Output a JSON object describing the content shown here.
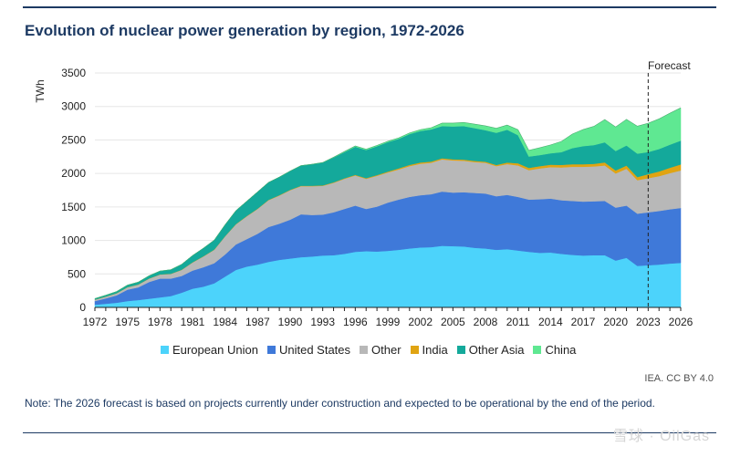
{
  "header": {
    "title": "Evolution of nuclear power generation by region, 1972-2026"
  },
  "footer": {
    "credit": "IEA. CC BY 4.0",
    "note": "Note: The 2026 forecast is based on projects currently under construction and expected to be operational by the end of the period.",
    "watermark": "雪球 · OilGas"
  },
  "chart_data": {
    "type": "area",
    "stacked": true,
    "title": "Evolution of nuclear power generation by region, 1972-2026",
    "xlabel": "",
    "ylabel": "TWh",
    "xlim": [
      1972,
      2026
    ],
    "ylim": [
      0,
      3500
    ],
    "x_ticks": [
      1972,
      1975,
      1978,
      1981,
      1984,
      1987,
      1990,
      1993,
      1996,
      1999,
      2002,
      2005,
      2008,
      2011,
      2014,
      2017,
      2020,
      2023,
      2026
    ],
    "y_ticks": [
      0,
      500,
      1000,
      1500,
      2000,
      2500,
      3000,
      3500
    ],
    "grid": "horizontal",
    "legend_position": "bottom",
    "annotation": {
      "label": "Forecast",
      "x": 2023
    },
    "x": [
      1972,
      1973,
      1974,
      1975,
      1976,
      1977,
      1978,
      1979,
      1980,
      1981,
      1982,
      1983,
      1984,
      1985,
      1986,
      1987,
      1988,
      1989,
      1990,
      1991,
      1992,
      1993,
      1994,
      1995,
      1996,
      1997,
      1998,
      1999,
      2000,
      2001,
      2002,
      2003,
      2004,
      2005,
      2006,
      2007,
      2008,
      2009,
      2010,
      2011,
      2012,
      2013,
      2014,
      2015,
      2016,
      2017,
      2018,
      2019,
      2020,
      2021,
      2022,
      2023,
      2024,
      2025,
      2026
    ],
    "series": [
      {
        "name": "European Union",
        "color": "#4cd3fb",
        "values": [
          40,
          55,
          70,
          95,
          110,
          130,
          150,
          170,
          220,
          280,
          310,
          360,
          460,
          560,
          610,
          640,
          680,
          710,
          730,
          750,
          760,
          775,
          780,
          800,
          830,
          840,
          835,
          845,
          860,
          880,
          895,
          900,
          920,
          915,
          910,
          890,
          880,
          860,
          870,
          850,
          830,
          815,
          820,
          800,
          785,
          775,
          780,
          780,
          700,
          740,
          620,
          630,
          640,
          655,
          665
        ]
      },
      {
        "name": "United States",
        "color": "#3f79d9",
        "values": [
          55,
          80,
          110,
          170,
          190,
          250,
          280,
          260,
          250,
          270,
          290,
          300,
          330,
          380,
          410,
          460,
          520,
          540,
          580,
          640,
          620,
          610,
          640,
          670,
          690,
          630,
          670,
          720,
          750,
          770,
          780,
          790,
          810,
          800,
          810,
          820,
          820,
          800,
          810,
          800,
          780,
          800,
          805,
          800,
          805,
          805,
          805,
          810,
          790,
          780,
          780,
          790,
          800,
          810,
          820
        ]
      },
      {
        "name": "Other",
        "color": "#b8b8b8",
        "values": [
          20,
          25,
          30,
          35,
          40,
          50,
          60,
          70,
          90,
          120,
          160,
          200,
          270,
          300,
          340,
          370,
          400,
          420,
          440,
          420,
          430,
          430,
          440,
          450,
          450,
          450,
          460,
          450,
          450,
          460,
          470,
          470,
          480,
          480,
          470,
          460,
          460,
          450,
          460,
          470,
          440,
          460,
          470,
          490,
          510,
          520,
          520,
          530,
          510,
          550,
          500,
          510,
          520,
          540,
          560
        ]
      },
      {
        "name": "India",
        "color": "#e0a412",
        "values": [
          2,
          2,
          2,
          3,
          3,
          3,
          3,
          3,
          3,
          4,
          4,
          4,
          4,
          5,
          5,
          5,
          6,
          6,
          6,
          7,
          7,
          7,
          8,
          8,
          9,
          10,
          11,
          13,
          16,
          18,
          19,
          18,
          17,
          17,
          17,
          17,
          16,
          17,
          23,
          32,
          33,
          34,
          36,
          38,
          38,
          38,
          39,
          45,
          45,
          48,
          46,
          60,
          70,
          80,
          90
        ]
      },
      {
        "name": "Other Asia",
        "color": "#14a99b",
        "values": [
          15,
          20,
          25,
          30,
          35,
          40,
          50,
          60,
          80,
          100,
          120,
          140,
          170,
          200,
          220,
          250,
          260,
          270,
          280,
          300,
          320,
          340,
          370,
          390,
          420,
          420,
          430,
          440,
          440,
          460,
          470,
          480,
          480,
          490,
          500,
          490,
          470,
          480,
          490,
          420,
          170,
          165,
          170,
          190,
          240,
          270,
          280,
          300,
          290,
          300,
          350,
          330,
          335,
          345,
          355
        ]
      },
      {
        "name": "China",
        "color": "#5fe892",
        "values": [
          0,
          0,
          0,
          0,
          0,
          0,
          0,
          0,
          0,
          0,
          0,
          0,
          0,
          0,
          0,
          0,
          0,
          0,
          0,
          0,
          0,
          2,
          5,
          10,
          12,
          13,
          13,
          13,
          15,
          17,
          20,
          25,
          45,
          50,
          55,
          60,
          65,
          68,
          70,
          82,
          92,
          110,
          125,
          160,
          210,
          248,
          280,
          340,
          360,
          390,
          410,
          430,
          450,
          470,
          490
        ]
      }
    ]
  }
}
